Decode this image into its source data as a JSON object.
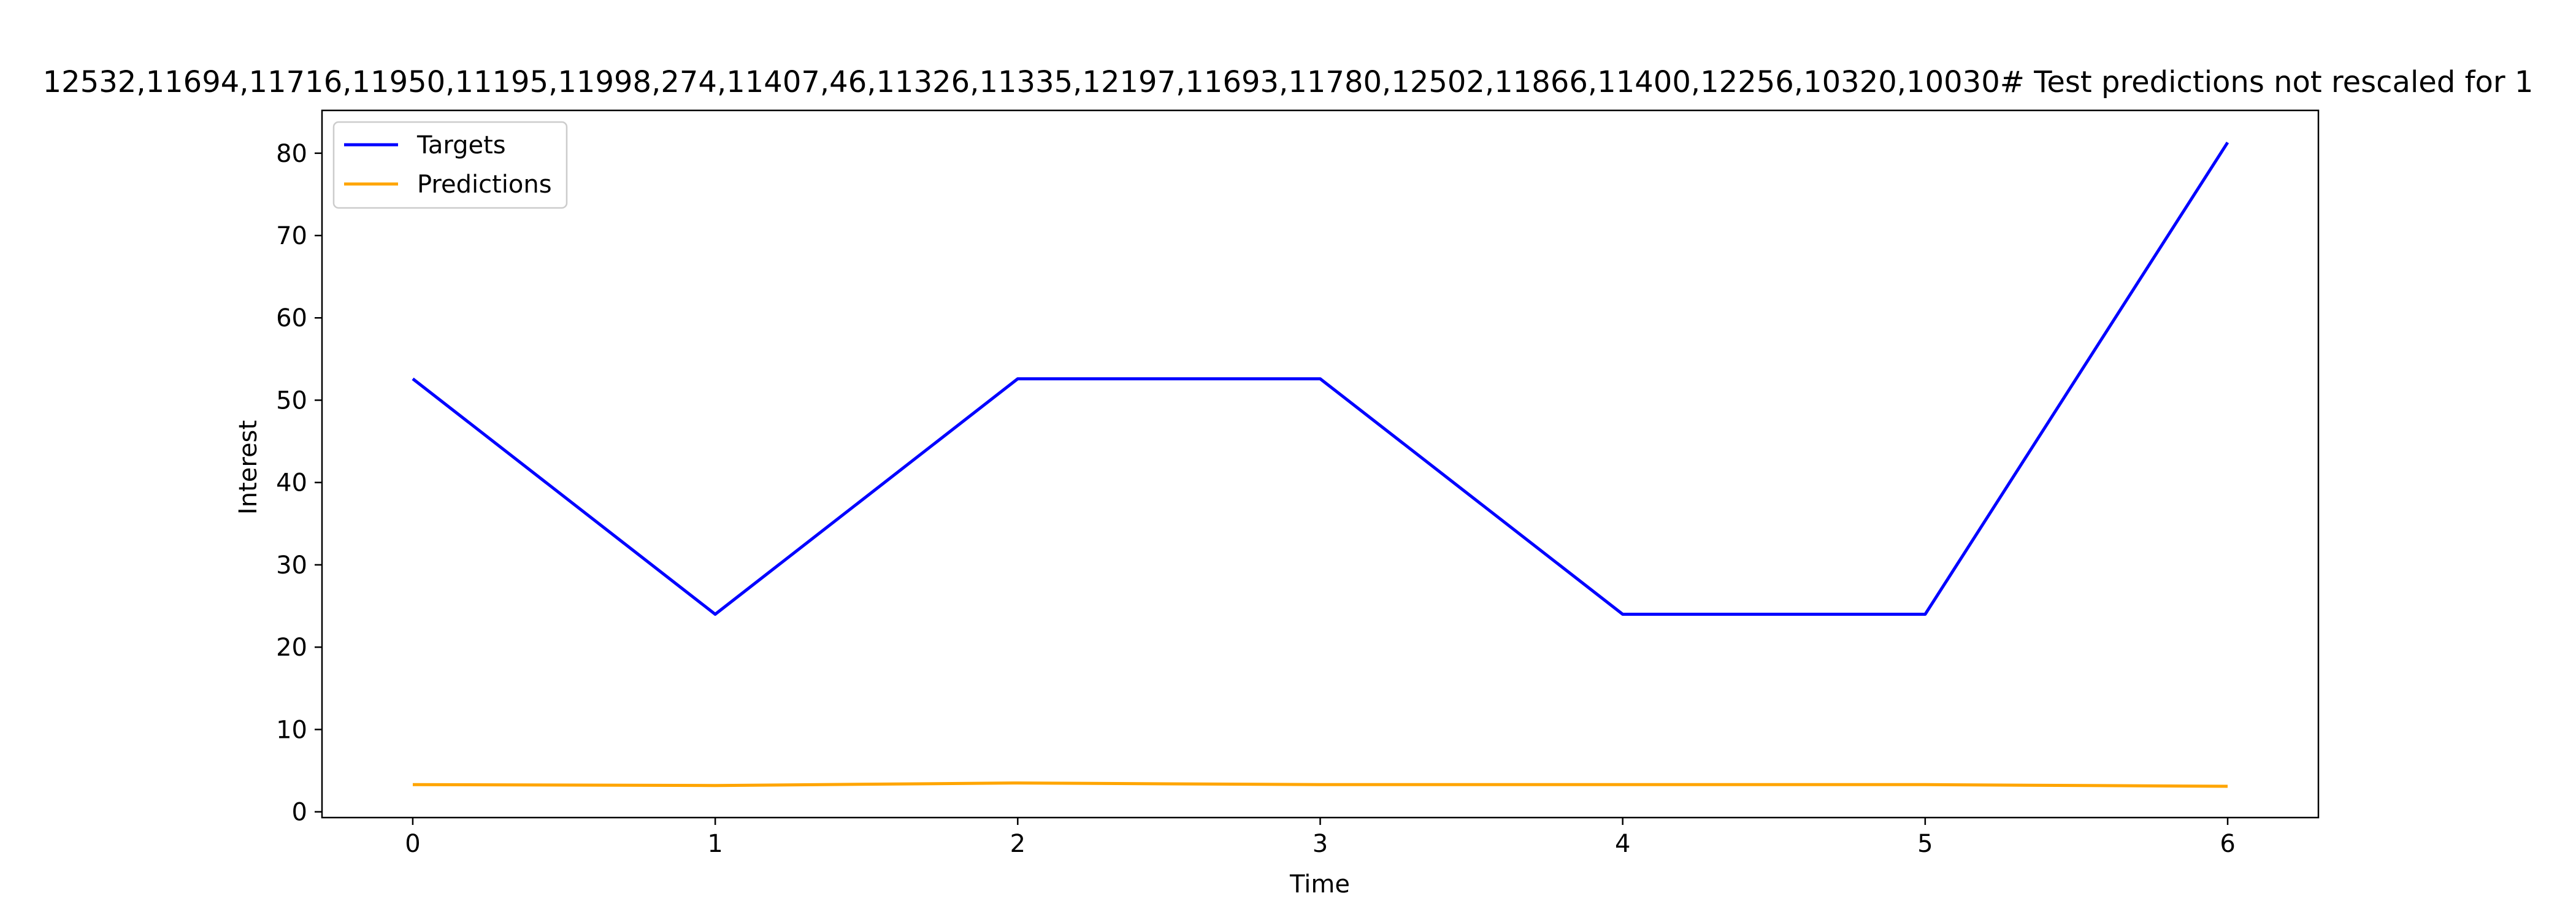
{
  "chart_data": {
    "type": "line",
    "title": "12532,11694,11716,11950,11195,11998,274,11407,46,11326,11335,12197,11693,11780,12502,11866,11400,12256,10320,10030# Test predictions not rescaled for 1",
    "xlabel": "Time",
    "ylabel": "Interest",
    "xlim": [
      -0.3,
      6.3
    ],
    "ylim": [
      -0.7,
      85.2
    ],
    "xticks": [
      0,
      1,
      2,
      3,
      4,
      5,
      6
    ],
    "yticks": [
      0,
      10,
      20,
      30,
      40,
      50,
      60,
      70,
      80
    ],
    "legend_position": "top-left",
    "grid": false,
    "x": [
      0,
      1,
      2,
      3,
      4,
      5,
      6
    ],
    "series": [
      {
        "name": "Targets",
        "color": "#0000ff",
        "values": [
          52.6,
          24.0,
          52.6,
          52.6,
          24.0,
          24.0,
          81.3
        ]
      },
      {
        "name": "Predictions",
        "color": "#ffa500",
        "values": [
          3.3,
          3.2,
          3.5,
          3.3,
          3.3,
          3.3,
          3.1
        ]
      }
    ]
  }
}
